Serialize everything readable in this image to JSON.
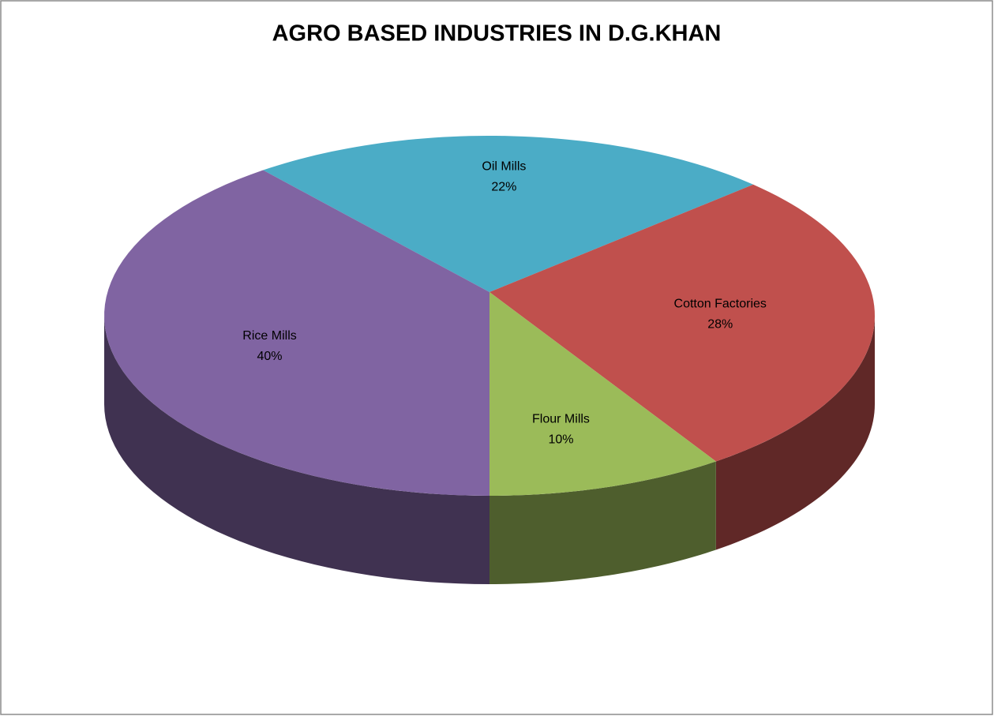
{
  "chart_data": {
    "type": "pie3d",
    "title": "AGRO BASED INDUSTRIES IN D.G.KHAN",
    "categories": [
      "Oil Mills",
      "Cotton Factories",
      "Flour Mills",
      "Rice Mills"
    ],
    "values": [
      22,
      28,
      10,
      40
    ],
    "value_labels": [
      "22%",
      "28%",
      "10%",
      "40%"
    ],
    "colors": [
      "#4bacc6",
      "#c0504d",
      "#9bbb59",
      "#8064a2"
    ]
  }
}
